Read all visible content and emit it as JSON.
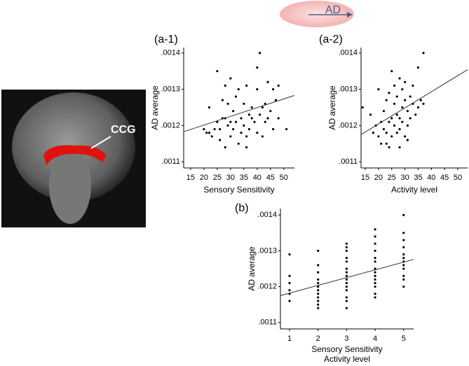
{
  "panel_labels": [
    "(a-1)",
    "(a-2)",
    "(b)"
  ],
  "diagram": {
    "label": "AD"
  },
  "brain": {
    "label": "CCG"
  },
  "chart_data": [
    {
      "type": "scatter",
      "ylabel": "AD average",
      "xlabel": "Sensory Sensitivity",
      "xlim": [
        12.4,
        54
      ],
      "ylim": [
        0.001083,
        0.001415
      ],
      "xticks": [
        15,
        20,
        25,
        30,
        35,
        40,
        45,
        50
      ],
      "yticks": [
        {
          "value": 0.0011,
          "label": ".0011"
        },
        {
          "value": 0.0012,
          "label": ".0012"
        },
        {
          "value": 0.0013,
          "label": ".0013"
        },
        {
          "value": 0.0014,
          "label": ".0014"
        }
      ],
      "series": [
        {
          "color": "#000000",
          "x": [
            20,
            21,
            22,
            22,
            23,
            24,
            25,
            25,
            26,
            26,
            27,
            27,
            28,
            28,
            28,
            29,
            29,
            30,
            30,
            30,
            31,
            31,
            32,
            32,
            33,
            33,
            34,
            34,
            35,
            35,
            36,
            36,
            36,
            37,
            37,
            38,
            38,
            39,
            40,
            40,
            40,
            41,
            41,
            42,
            42,
            43,
            43,
            44,
            44,
            45,
            46,
            46,
            47,
            48,
            48,
            51
          ],
          "values": [
            0.00119,
            0.00118,
            0.00125,
            0.00118,
            0.00117,
            0.00119,
            0.00135,
            0.00121,
            0.00116,
            0.00119,
            0.00122,
            0.00127,
            0.00114,
            0.00131,
            0.00122,
            0.0012,
            0.00126,
            0.00133,
            0.00121,
            0.00117,
            0.00124,
            0.00119,
            0.00121,
            0.00128,
            0.00115,
            0.0013,
            0.00122,
            0.00118,
            0.00126,
            0.0012,
            0.00114,
            0.00117,
            0.00131,
            0.00123,
            0.00119,
            0.00125,
            0.00122,
            0.00121,
            0.0013,
            0.00136,
            0.00118,
            0.0014,
            0.00123,
            0.00125,
            0.00117,
            0.00126,
            0.00121,
            0.00132,
            0.00122,
            0.00124,
            0.00119,
            0.0013,
            0.00127,
            0.00131,
            0.00122,
            0.00119
          ]
        }
      ],
      "trend": {
        "x": [
          12.4,
          54
        ],
        "values": [
          0.001183,
          0.001283
        ]
      }
    },
    {
      "type": "scatter",
      "ylabel": "AD average",
      "xlabel": "Activity level",
      "xlim": [
        13.4,
        53.7
      ],
      "ylim": [
        0.001083,
        0.001415
      ],
      "xticks": [
        15,
        20,
        25,
        30,
        35,
        40,
        45,
        50
      ],
      "yticks": [
        {
          "value": 0.0011,
          "label": ".0011"
        },
        {
          "value": 0.0012,
          "label": ".0012"
        },
        {
          "value": 0.0013,
          "label": ".0013"
        },
        {
          "value": 0.0014,
          "label": ".0014"
        }
      ],
      "series": [
        {
          "color": "#000000",
          "x": [
            14,
            17,
            18,
            19,
            20,
            20,
            21,
            21,
            22,
            22,
            23,
            23,
            23,
            24,
            24,
            25,
            25,
            25,
            26,
            26,
            26,
            27,
            27,
            27,
            28,
            28,
            28,
            29,
            29,
            29,
            30,
            30,
            30,
            31,
            31,
            32,
            32,
            33,
            33,
            34,
            35,
            35,
            36,
            37,
            37,
            28,
            24,
            31
          ],
          "values": [
            0.00125,
            0.00123,
            0.00118,
            0.0012,
            0.00117,
            0.0013,
            0.00121,
            0.00115,
            0.00119,
            0.00124,
            0.00118,
            0.00127,
            0.00115,
            0.00121,
            0.00129,
            0.00135,
            0.00122,
            0.00117,
            0.00126,
            0.0012,
            0.00131,
            0.00123,
            0.00118,
            0.00128,
            0.00133,
            0.00122,
            0.00119,
            0.00125,
            0.0013,
            0.00121,
            0.00127,
            0.00117,
            0.00132,
            0.00124,
            0.0012,
            0.00128,
            0.00122,
            0.00126,
            0.00131,
            0.00123,
            0.00136,
            0.00125,
            0.00127,
            0.0014,
            0.00126,
            0.00114,
            0.00114,
            0.00116
          ]
        }
      ],
      "trend": {
        "x": [
          13.4,
          53.7
        ],
        "values": [
          0.001175,
          0.001354
        ]
      }
    },
    {
      "type": "scatter",
      "ylabel": "AD average",
      "xlabel": [
        "Sensory Sensitivity",
        "Activity level"
      ],
      "xlim": [
        0.68,
        5.35
      ],
      "ylim": [
        0.001082,
        0.001418
      ],
      "xticks": [
        1,
        2,
        3,
        4,
        5
      ],
      "yticks": [
        {
          "value": 0.0011,
          "label": ".0011"
        },
        {
          "value": 0.0012,
          "label": ".0012"
        },
        {
          "value": 0.0013,
          "label": ".0013"
        },
        {
          "value": 0.0014,
          "label": ".0014"
        }
      ],
      "series": [
        {
          "color": "#000000",
          "x": [
            1,
            1,
            1,
            1,
            1,
            1,
            2,
            2,
            2,
            2,
            2,
            2,
            2,
            2,
            2,
            2,
            2,
            2,
            3,
            3,
            3,
            3,
            3,
            3,
            3,
            3,
            3,
            3,
            3,
            3,
            3,
            3,
            3,
            4,
            4,
            4,
            4,
            4,
            4,
            4,
            4,
            4,
            4,
            4,
            4,
            4,
            4,
            5,
            5,
            5,
            5,
            5,
            5,
            5,
            5,
            5,
            5,
            5,
            5
          ],
          "values": [
            0.00129,
            0.00123,
            0.00121,
            0.00119,
            0.00118,
            0.00116,
            0.0013,
            0.00126,
            0.00124,
            0.00122,
            0.00121,
            0.0012,
            0.00119,
            0.00118,
            0.00117,
            0.00116,
            0.00115,
            0.00114,
            0.00132,
            0.00131,
            0.0013,
            0.00128,
            0.00127,
            0.00125,
            0.00124,
            0.00123,
            0.00122,
            0.00121,
            0.0012,
            0.00119,
            0.00117,
            0.00116,
            0.00114,
            0.00136,
            0.00134,
            0.00132,
            0.0013,
            0.00128,
            0.00127,
            0.00125,
            0.00124,
            0.00123,
            0.00122,
            0.00121,
            0.0012,
            0.00118,
            0.00117,
            0.0014,
            0.00135,
            0.00133,
            0.00131,
            0.00129,
            0.00128,
            0.00127,
            0.00126,
            0.00125,
            0.00123,
            0.00122,
            0.0012
          ]
        }
      ],
      "trend": {
        "x": [
          0.68,
          5.35
        ],
        "values": [
          0.001175,
          0.001276
        ]
      }
    }
  ]
}
